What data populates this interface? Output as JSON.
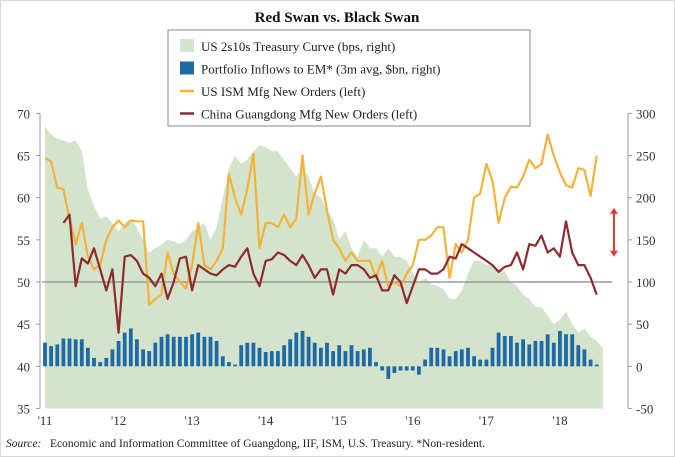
{
  "chart_data": {
    "type": "bar+line+area",
    "title": "Red Swan vs. Black Swan",
    "start_month": "2011-01",
    "frequency": "monthly",
    "x_tick_labels": [
      "'11",
      "'12",
      "'13",
      "'14",
      "'15",
      "'16",
      "'17",
      "'18"
    ],
    "left_axis": {
      "ylim": [
        35,
        70
      ],
      "ticks": [
        "70",
        "65",
        "60",
        "55",
        "50",
        "45",
        "40",
        "35"
      ]
    },
    "right_axis": {
      "ylim": [
        -50,
        300
      ],
      "ticks": [
        "300",
        "250",
        "200",
        "150",
        "100",
        "50",
        "0",
        "-50"
      ]
    },
    "reference_line_left": 50,
    "legend": [
      {
        "label": "US 2s10s Treasury Curve (bps, right)",
        "type": "area",
        "color": "#d4e3cb"
      },
      {
        "label": "Portfolio Inflows to EM* (3m avg, $bn, right)",
        "type": "bar",
        "color": "#1f6aa5"
      },
      {
        "label": "US ISM Mfg New Orders (left)",
        "type": "line",
        "color": "#f3b23a"
      },
      {
        "label": "China Guangdong Mfg New Orders (left)",
        "type": "line",
        "color": "#8e2b2e"
      }
    ],
    "series": [
      {
        "name": "US 2s10s Treasury Curve (bps, right)",
        "axis": "right",
        "start_index": 0,
        "values": [
          285,
          275,
          270,
          268,
          265,
          268,
          255,
          210,
          190,
          175,
          178,
          170,
          160,
          170,
          175,
          165,
          150,
          135,
          140,
          145,
          150,
          148,
          145,
          150,
          160,
          165,
          170,
          150,
          165,
          200,
          235,
          250,
          240,
          245,
          255,
          262,
          260,
          255,
          255,
          245,
          235,
          225,
          235,
          225,
          205,
          200,
          185,
          175,
          150,
          160,
          140,
          130,
          150,
          140,
          140,
          130,
          140,
          130,
          130,
          125,
          110,
          100,
          105,
          98,
          95,
          92,
          80,
          80,
          90,
          110,
          125,
          125,
          120,
          120,
          115,
          112,
          100,
          95,
          85,
          80,
          70,
          70,
          60,
          50,
          55,
          65,
          50,
          40,
          45,
          35,
          30,
          22
        ]
      },
      {
        "name": "Portfolio Inflows to EM* (3m avg, $bn, right)",
        "axis": "right",
        "start_index": 0,
        "values": [
          28,
          24,
          26,
          33,
          33,
          32,
          32,
          22,
          10,
          5,
          10,
          20,
          30,
          40,
          45,
          32,
          20,
          18,
          28,
          35,
          38,
          35,
          35,
          35,
          38,
          40,
          35,
          35,
          30,
          12,
          5,
          2,
          25,
          28,
          28,
          22,
          17,
          18,
          18,
          25,
          32,
          40,
          42,
          35,
          28,
          22,
          28,
          18,
          25,
          18,
          25,
          18,
          20,
          22,
          5,
          -5,
          -15,
          -8,
          -5,
          -5,
          -5,
          -10,
          8,
          22,
          22,
          20,
          12,
          18,
          20,
          22,
          12,
          8,
          8,
          22,
          40,
          36,
          36,
          28,
          32,
          26,
          30,
          30,
          38,
          28,
          42,
          38,
          38,
          25,
          20,
          8,
          2
        ]
      },
      {
        "name": "US ISM Mfg New Orders (left)",
        "axis": "left",
        "start_index": 0,
        "values": [
          64.7,
          64.3,
          61.2,
          61,
          57.5,
          54.5,
          57,
          53,
          51.5,
          52,
          55,
          56.5,
          57.3,
          56.5,
          57.3,
          57.2,
          57.2,
          47.3,
          48,
          48.5,
          53.5,
          51,
          50,
          49.2,
          52,
          57,
          52,
          51.5,
          52.5,
          54,
          62.8,
          60,
          58,
          61,
          65.2,
          54,
          57,
          57,
          56.5,
          58,
          56.5,
          57.5,
          65,
          58,
          60.5,
          62.5,
          58.5,
          55,
          54,
          52.5,
          53.5,
          52.5,
          52.5,
          52.5,
          50.5,
          52.5,
          49.5,
          50,
          49.5,
          51,
          52,
          55,
          55,
          55.5,
          56.5,
          56.5,
          50.5,
          54.5,
          53.5,
          55,
          60,
          60.5,
          64,
          62,
          57,
          60,
          61.3,
          61.2,
          62.5,
          64.5,
          63.5,
          64,
          67.5,
          65,
          63,
          61.5,
          61.2,
          63.5,
          63.3,
          60.2,
          65
        ]
      },
      {
        "name": "China Guangdong Mfg New Orders (left)",
        "axis": "left",
        "start_index": 3,
        "values": [
          57,
          58,
          49.5,
          52.8,
          52.2,
          54,
          51.5,
          49,
          51.5,
          44,
          53,
          53.2,
          52.5,
          51,
          50.5,
          49.5,
          51,
          48,
          50,
          52.8,
          53,
          49,
          52,
          51.5,
          51,
          50.8,
          51.5,
          52,
          51.8,
          53,
          54,
          51,
          49.5,
          52.5,
          52.7,
          53.5,
          53.2,
          52.5,
          52,
          53.2,
          52,
          50.5,
          51.5,
          51.5,
          48.5,
          51.5,
          51,
          52,
          52,
          51.5,
          50.5,
          50.8,
          49,
          49,
          50.8,
          50,
          47.5,
          49.5,
          51.5,
          51.5,
          51,
          51,
          51.5,
          53,
          52.8,
          54.5,
          54,
          53.5,
          53,
          52.5,
          52,
          51.2,
          51.8,
          52,
          53.5,
          51.5,
          54.5,
          54.3,
          55.5,
          53.5,
          54,
          53,
          57.2,
          53.5,
          52,
          52,
          50.5,
          48.5
        ]
      }
    ],
    "annotations": [
      {
        "type": "double-arrow",
        "color": "#e03a3a",
        "from_left": 58.8,
        "to_left": 53.0,
        "note": "gap between US ISM and China Guangdong"
      }
    ],
    "source_label": "Source:",
    "source_text": "Economic and Information Committee of Guangdong, IIF, ISM, U.S. Treasury. *Non-resident."
  }
}
